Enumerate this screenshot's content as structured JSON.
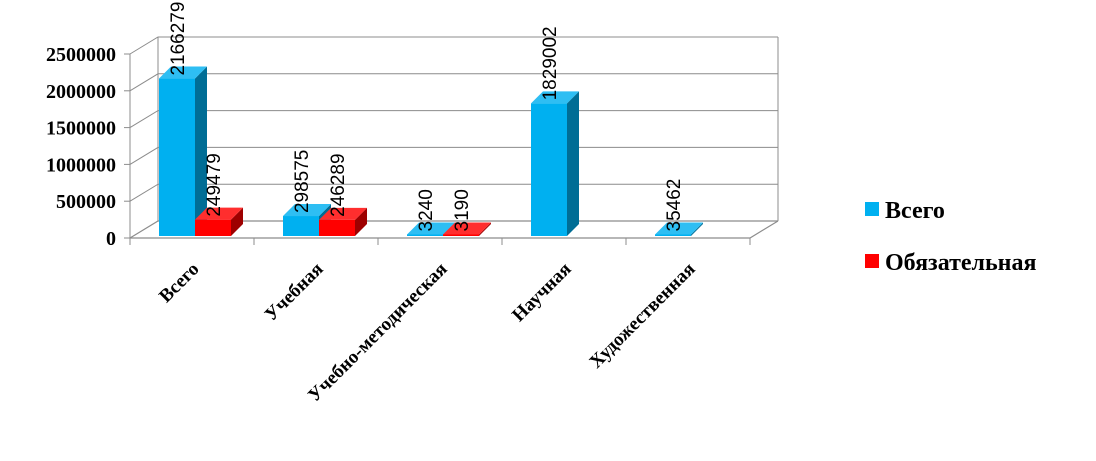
{
  "chart_data": {
    "type": "bar",
    "three_d": true,
    "categories": [
      "Всего",
      "Учебная",
      "Учебно-методическая",
      "Научная",
      "Художественная"
    ],
    "series": [
      {
        "name": "Всего",
        "color": "#00B0F0",
        "values": [
          2166279,
          298575,
          3240,
          1829002,
          35462
        ]
      },
      {
        "name": "Обязательная",
        "color": "#FF0000",
        "values": [
          249479,
          246289,
          3190,
          null,
          null
        ]
      }
    ],
    "yticks": [
      "0",
      "500000",
      "1000000",
      "1500000",
      "2000000",
      "2500000"
    ],
    "ylim": [
      0,
      2500000
    ],
    "grid": true,
    "legend_position": "right"
  }
}
